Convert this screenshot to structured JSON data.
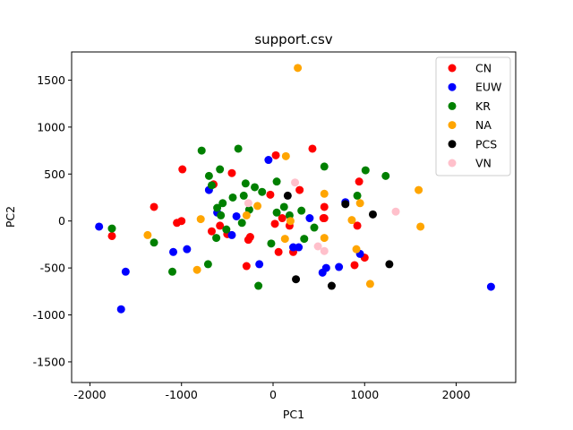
{
  "chart_data": {
    "type": "scatter",
    "title": "support.csv",
    "xlabel": "PC1",
    "ylabel": "PC2",
    "xlim": [
      -2200,
      2650
    ],
    "ylim": [
      -1720,
      1800
    ],
    "xticks": [
      -2000,
      -1000,
      0,
      1000,
      2000
    ],
    "yticks": [
      -1500,
      -1000,
      -500,
      0,
      500,
      1000,
      1500
    ],
    "grid": false,
    "legend_position": "top-right",
    "series": [
      {
        "name": "CN",
        "color": "#ff0000",
        "points": [
          [
            -1760,
            -160
          ],
          [
            -1300,
            150
          ],
          [
            -1050,
            -20
          ],
          [
            -1000,
            0
          ],
          [
            -990,
            550
          ],
          [
            -650,
            390
          ],
          [
            -670,
            -110
          ],
          [
            -580,
            -50
          ],
          [
            -500,
            -140
          ],
          [
            -450,
            510
          ],
          [
            -290,
            -480
          ],
          [
            -270,
            -200
          ],
          [
            -250,
            -170
          ],
          [
            -30,
            280
          ],
          [
            20,
            -30
          ],
          [
            30,
            700
          ],
          [
            60,
            -330
          ],
          [
            100,
            30
          ],
          [
            180,
            -50
          ],
          [
            220,
            -330
          ],
          [
            290,
            330
          ],
          [
            430,
            770
          ],
          [
            560,
            150
          ],
          [
            550,
            30
          ],
          [
            560,
            30
          ],
          [
            890,
            -470
          ],
          [
            920,
            -50
          ],
          [
            940,
            420
          ],
          [
            1000,
            -390
          ]
        ]
      },
      {
        "name": "EUW",
        "color": "#0000ff",
        "points": [
          [
            -1900,
            -60
          ],
          [
            -1660,
            -940
          ],
          [
            -1610,
            -540
          ],
          [
            -1090,
            -330
          ],
          [
            -940,
            -300
          ],
          [
            -700,
            330
          ],
          [
            -610,
            90
          ],
          [
            -450,
            -150
          ],
          [
            -400,
            50
          ],
          [
            -150,
            -460
          ],
          [
            -50,
            650
          ],
          [
            220,
            -280
          ],
          [
            280,
            -280
          ],
          [
            400,
            30
          ],
          [
            540,
            -550
          ],
          [
            580,
            -500
          ],
          [
            720,
            -490
          ],
          [
            790,
            200
          ],
          [
            950,
            -350
          ],
          [
            2380,
            -700
          ]
        ]
      },
      {
        "name": "KR",
        "color": "#008000",
        "points": [
          [
            -1760,
            -80
          ],
          [
            -1300,
            -230
          ],
          [
            -1100,
            -540
          ],
          [
            -780,
            750
          ],
          [
            -710,
            -460
          ],
          [
            -700,
            480
          ],
          [
            -670,
            380
          ],
          [
            -620,
            -180
          ],
          [
            -580,
            550
          ],
          [
            -570,
            60
          ],
          [
            -550,
            190
          ],
          [
            -610,
            140
          ],
          [
            -510,
            -90
          ],
          [
            -440,
            250
          ],
          [
            -340,
            -20
          ],
          [
            -320,
            270
          ],
          [
            -300,
            400
          ],
          [
            -260,
            120
          ],
          [
            -200,
            360
          ],
          [
            -160,
            -690
          ],
          [
            -120,
            310
          ],
          [
            -380,
            770
          ],
          [
            -20,
            -240
          ],
          [
            40,
            420
          ],
          [
            40,
            90
          ],
          [
            120,
            150
          ],
          [
            180,
            60
          ],
          [
            310,
            110
          ],
          [
            340,
            -190
          ],
          [
            450,
            -70
          ],
          [
            560,
            580
          ],
          [
            920,
            270
          ],
          [
            1010,
            540
          ],
          [
            1230,
            480
          ]
        ]
      },
      {
        "name": "NA",
        "color": "#ffa500",
        "points": [
          [
            -1370,
            -150
          ],
          [
            -830,
            -520
          ],
          [
            -790,
            20
          ],
          [
            -290,
            60
          ],
          [
            -170,
            160
          ],
          [
            130,
            -190
          ],
          [
            140,
            690
          ],
          [
            190,
            0
          ],
          [
            270,
            1630
          ],
          [
            560,
            290
          ],
          [
            560,
            -180
          ],
          [
            860,
            10
          ],
          [
            910,
            -300
          ],
          [
            950,
            190
          ],
          [
            1060,
            -670
          ],
          [
            1590,
            330
          ],
          [
            1610,
            -60
          ]
        ]
      },
      {
        "name": "PCS",
        "color": "#000000",
        "points": [
          [
            160,
            270
          ],
          [
            250,
            -620
          ],
          [
            640,
            -690
          ],
          [
            790,
            180
          ],
          [
            1090,
            70
          ],
          [
            1270,
            -460
          ]
        ]
      },
      {
        "name": "VN",
        "color": "#ffc0cb",
        "points": [
          [
            -270,
            190
          ],
          [
            240,
            410
          ],
          [
            490,
            -270
          ],
          [
            560,
            -320
          ],
          [
            1340,
            100
          ]
        ]
      }
    ]
  }
}
